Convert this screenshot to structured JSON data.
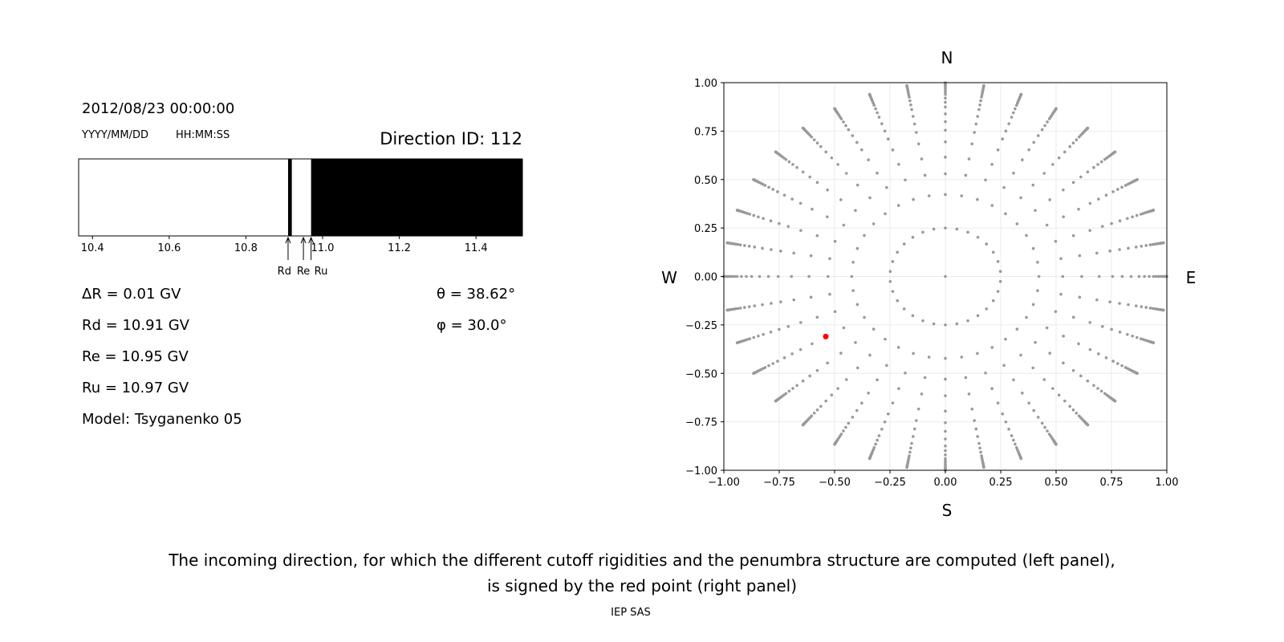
{
  "left_panel": {
    "datetime": "2012/08/23 00:00:00",
    "date_format": "YYYY/MM/DD",
    "time_format": "HH:MM:SS",
    "direction_id": "Direction ID: 112",
    "params": {
      "dR": "ΔR = 0.01 GV",
      "Rd": "Rd = 10.91 GV",
      "Re": "Re = 10.95 GV",
      "Ru": "Ru = 10.97 GV",
      "model": "Model: Tsyganenko 05",
      "theta": "θ = 38.62°",
      "phi": "φ = 30.0°"
    }
  },
  "chart_data": [
    {
      "type": "bar",
      "subtype": "penumbra",
      "xlim": [
        10.364,
        11.521
      ],
      "xticks": [
        "10.4",
        "10.6",
        "10.8",
        "11.0",
        "11.2",
        "11.4"
      ],
      "segments": [
        {
          "from": 10.364,
          "to": 10.91,
          "state": "allowed",
          "color": "#ffffff"
        },
        {
          "from": 10.91,
          "to": 10.92,
          "state": "forbidden",
          "color": "#000000"
        },
        {
          "from": 10.92,
          "to": 10.97,
          "state": "allowed",
          "color": "#ffffff"
        },
        {
          "from": 10.97,
          "to": 11.521,
          "state": "forbidden",
          "color": "#000000"
        }
      ],
      "markers": [
        {
          "label": "Rd",
          "value": 10.91
        },
        {
          "label": "Re",
          "value": 10.95
        },
        {
          "label": "Ru",
          "value": 10.97
        }
      ]
    },
    {
      "type": "scatter",
      "xlim": [
        -1,
        1
      ],
      "ylim": [
        -1,
        1
      ],
      "grid": true,
      "xticks": [
        "−1.00",
        "−0.75",
        "−0.50",
        "−0.25",
        "0.00",
        "0.25",
        "0.50",
        "0.75",
        "1.00"
      ],
      "yticks": [
        "−1.00",
        "−0.75",
        "−0.50",
        "−0.25",
        "0.00",
        "0.25",
        "0.50",
        "0.75",
        "1.00"
      ],
      "compass": {
        "N": "N",
        "S": "S",
        "W": "W",
        "E": "E"
      },
      "direction_grid": {
        "color": "#999999",
        "center_point": [
          0,
          0
        ],
        "inner_ring_radius": 0.25,
        "inner_ring_azimuth_step_deg": 12,
        "ray_azimuth_step_deg": 10,
        "ray_zenith_angles_deg": [
          25,
          32,
          38,
          44,
          49,
          53,
          57,
          61,
          64,
          67,
          70,
          72,
          74,
          76,
          78,
          80,
          82,
          84,
          86,
          88,
          90
        ]
      },
      "selected_point": {
        "x": -0.54,
        "y": -0.31,
        "color": "#ff0000"
      }
    }
  ],
  "caption": {
    "line1": "The incoming direction, for which the different cutoff rigidities and the penumbra structure are computed (left panel),",
    "line2": "is signed by the red point (right panel)",
    "credit": "IEP SAS"
  }
}
